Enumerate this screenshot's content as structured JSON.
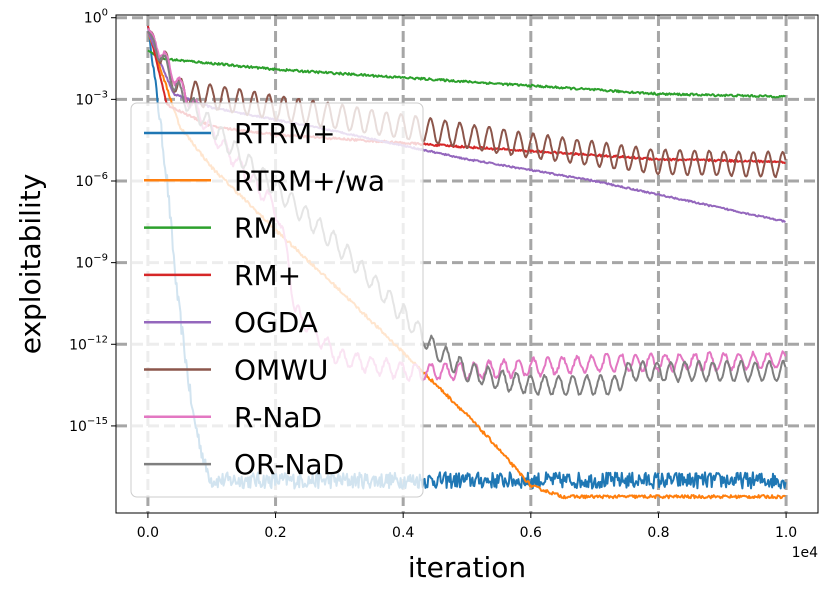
{
  "chart_data": {
    "type": "line",
    "xlabel": "iteration",
    "ylabel": "exploitability",
    "x_scale_label": "1e4",
    "xlim": [
      -500,
      10500
    ],
    "ylim_exp10": [
      -18.2,
      0.1
    ],
    "y_scale": "log",
    "grid": true,
    "legend_placement": "upper-left",
    "x_ticks": [
      {
        "value": 0,
        "label": "0.0"
      },
      {
        "value": 2000,
        "label": "0.2"
      },
      {
        "value": 4000,
        "label": "0.4"
      },
      {
        "value": 6000,
        "label": "0.6"
      },
      {
        "value": 8000,
        "label": "0.8"
      },
      {
        "value": 10000,
        "label": "1.0"
      }
    ],
    "y_ticks": [
      {
        "exp": 0,
        "base": "10",
        "sup": "0"
      },
      {
        "exp": -3,
        "base": "10",
        "sup": "−3"
      },
      {
        "exp": -6,
        "base": "10",
        "sup": "−6"
      },
      {
        "exp": -9,
        "base": "10",
        "sup": "−9"
      },
      {
        "exp": -12,
        "base": "10",
        "sup": "−12"
      },
      {
        "exp": -15,
        "base": "10",
        "sup": "−15"
      }
    ],
    "series": [
      {
        "name": "RTRM+",
        "color": "#1f77b4",
        "noise": 0.6,
        "osc_amp": 0,
        "osc_period": 300,
        "points": [
          [
            0,
            -0.3
          ],
          [
            150,
            -3
          ],
          [
            300,
            -6
          ],
          [
            450,
            -10
          ],
          [
            700,
            -14.5
          ],
          [
            900,
            -16.5
          ],
          [
            1000,
            -17
          ],
          [
            10000,
            -17
          ]
        ]
      },
      {
        "name": "RTRM+/wa",
        "color": "#ff7f0e",
        "noise": 0.12,
        "osc_amp": 0,
        "osc_period": 300,
        "points": [
          [
            0,
            -0.5
          ],
          [
            500,
            -4
          ],
          [
            1000,
            -5.5
          ],
          [
            2000,
            -7.8
          ],
          [
            3000,
            -10
          ],
          [
            4000,
            -12.3
          ],
          [
            5000,
            -14.6
          ],
          [
            5400,
            -15.6
          ],
          [
            6000,
            -17.2
          ],
          [
            6500,
            -17.6
          ],
          [
            10000,
            -17.6
          ]
        ]
      },
      {
        "name": "RM",
        "color": "#2ca02c",
        "noise": 0.08,
        "osc_amp": 0,
        "osc_period": 300,
        "points": [
          [
            0,
            -1.2
          ],
          [
            200,
            -1.5
          ],
          [
            2000,
            -1.9
          ],
          [
            4000,
            -2.2
          ],
          [
            6000,
            -2.5
          ],
          [
            8000,
            -2.8
          ],
          [
            10000,
            -2.9
          ]
        ]
      },
      {
        "name": "RM+",
        "color": "#d62728",
        "noise": 0.08,
        "osc_amp": 0,
        "osc_period": 300,
        "points": [
          [
            0,
            -0.3
          ],
          [
            300,
            -3.2
          ],
          [
            1000,
            -4
          ],
          [
            2000,
            -4.3
          ],
          [
            4000,
            -4.6
          ],
          [
            6000,
            -4.9
          ],
          [
            8000,
            -5.2
          ],
          [
            10000,
            -5.3
          ]
        ]
      },
      {
        "name": "OGDA",
        "color": "#9467bd",
        "noise": 0.06,
        "osc_amp": 0,
        "osc_period": 300,
        "points": [
          [
            0,
            -0.5
          ],
          [
            400,
            -2.8
          ],
          [
            1000,
            -3.3
          ],
          [
            3000,
            -4.2
          ],
          [
            5000,
            -5.2
          ],
          [
            7000,
            -6
          ],
          [
            9000,
            -7
          ],
          [
            10000,
            -7.5
          ]
        ]
      },
      {
        "name": "OMWU",
        "color": "#8c564b",
        "noise": 0.05,
        "osc_amp": 0.45,
        "osc_period": 230,
        "points": [
          [
            0,
            -0.4
          ],
          [
            500,
            -2.7
          ],
          [
            2000,
            -3.3
          ],
          [
            4000,
            -4
          ],
          [
            6000,
            -4.7
          ],
          [
            8000,
            -5.3
          ],
          [
            10000,
            -5.4
          ]
        ]
      },
      {
        "name": "R-NaD",
        "color": "#e377c2",
        "noise": 0.15,
        "osc_amp": 0.3,
        "osc_period": 230,
        "points": [
          [
            0,
            -0.4
          ],
          [
            500,
            -2.5
          ],
          [
            1000,
            -4.2
          ],
          [
            2000,
            -7
          ],
          [
            2200,
            -8.8
          ],
          [
            2300,
            -10.8
          ],
          [
            3000,
            -12.5
          ],
          [
            4000,
            -13
          ],
          [
            5000,
            -13
          ],
          [
            7000,
            -12.7
          ],
          [
            10000,
            -12.6
          ]
        ]
      },
      {
        "name": "OR-NaD",
        "color": "#7f7f7f",
        "noise": 0.1,
        "osc_amp": 0.35,
        "osc_period": 220,
        "points": [
          [
            0,
            -0.5
          ],
          [
            500,
            -2.8
          ],
          [
            1500,
            -5.2
          ],
          [
            3000,
            -8.4
          ],
          [
            4000,
            -10.9
          ],
          [
            4500,
            -12.2
          ],
          [
            5000,
            -13
          ],
          [
            5500,
            -13.3
          ],
          [
            6000,
            -13.5
          ],
          [
            7400,
            -13.5
          ],
          [
            7450,
            -13
          ],
          [
            10000,
            -13
          ]
        ]
      }
    ]
  }
}
